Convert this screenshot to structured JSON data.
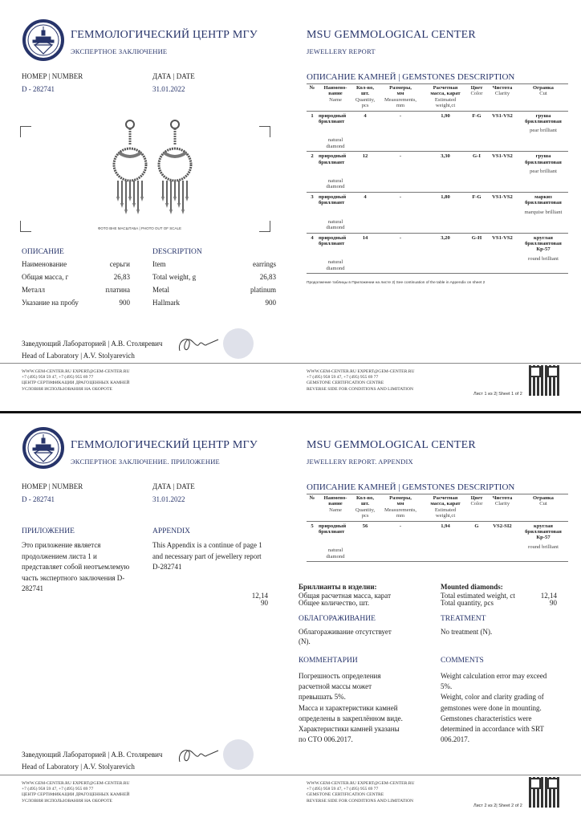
{
  "header_ru": {
    "org": "ГЕММОЛОГИЧЕСКИЙ ЦЕНТР МГУ",
    "doc1": "ЭКСПЕРТНОЕ ЗАКЛЮЧЕНИЕ",
    "doc2": "ЭКСПЕРТНОЕ ЗАКЛЮЧЕНИЕ. ПРИЛОЖЕНИЕ"
  },
  "header_en": {
    "org": "MSU GEMMOLOGICAL CENTER",
    "doc1": "JEWELLERY REPORT",
    "doc2": "JEWELLERY REPORT. APPENDIX"
  },
  "meta": {
    "number_label": "НОМЕР | NUMBER",
    "number": "D - 282741",
    "date_label": "ДАТА | DATE",
    "date": "31.01.2022"
  },
  "photo_caption": "ФОТО ВНЕ МАСШТАБА | PHOTO OUT OF SCALE",
  "description": {
    "title_ru": "ОПИСАНИЕ",
    "title_en": "DESCRIPTION",
    "rows": [
      {
        "ru": "Наименование",
        "ru_val": "серьги",
        "en": "Item",
        "en_val": "earrings"
      },
      {
        "ru": "Общая масса, г",
        "ru_val": "26,83",
        "en": "Total weight, g",
        "en_val": "26,83"
      },
      {
        "ru": "Металл",
        "ru_val": "платина",
        "en": "Metal",
        "en_val": "platinum"
      },
      {
        "ru": "Указание на пробу",
        "ru_val": "900",
        "en": "Hallmark",
        "en_val": "900"
      }
    ]
  },
  "signature": {
    "ru": "Заведующий Лабораторией  | А.В. Столяревич",
    "en": "Head of Laboratory  | A.V. Stolyarevich"
  },
  "footer_ru": [
    "WWW.GEM-CENTER.RU EXPERT@GEM-CENTER.RU",
    "+7 (495) 958 59 47, +7 (495) 955 69 77",
    "ЦЕНТР СЕРТИФИКАЦИИ ДРАГОЦЕННЫХ КАМНЕЙ",
    "УСЛОВИЯ ИСПОЛЬЗОВАНИЯ НА ОБОРОТЕ"
  ],
  "footer_en": [
    "WWW.GEM-CENTER.RU EXPERT@GEM-CENTER.RU",
    "+7 (495) 958 59 47, +7 (495) 955 69 77",
    "GEMSTONE CERTIFICATION CENTRE",
    "REVERSE SIDE FOR CONDITIONS AND LIMITATION"
  ],
  "sheet1_label": "Лист 1 из 2| Sheet 1 of 2",
  "sheet2_label": "Лист 2 из 2| Sheet 2 of 2",
  "gems": {
    "title": "ОПИСАНИЕ КАМНЕЙ | GEMSTONES DESCRIPTION",
    "columns": [
      {
        "ru": "№",
        "en": ""
      },
      {
        "ru": "Наимено-\nвание",
        "en": "Name"
      },
      {
        "ru": "Кол-во,\nшт.",
        "en": "Quantity,\npcs"
      },
      {
        "ru": "Размеры,\nмм",
        "en": "Measurements,\nmm"
      },
      {
        "ru": "Расчетная\nмасса, карат",
        "en": "Estimated\nweight,ct"
      },
      {
        "ru": "Цвет",
        "en": "Color"
      },
      {
        "ru": "Чистота",
        "en": "Clarity"
      },
      {
        "ru": "Огранка",
        "en": "Cut"
      }
    ],
    "sheet1_rows": [
      {
        "no": "1",
        "name_ru": "природный бриллиант",
        "name_en": "natural diamond",
        "qty": "4",
        "meas": "-",
        "weight": "1,90",
        "color": "F-G",
        "clarity": "VS1-VS2",
        "cut_ru": "груша бриллиантовая",
        "cut_en": "pear brilliant"
      },
      {
        "no": "2",
        "name_ru": "природный бриллиант",
        "name_en": "natural diamond",
        "qty": "12",
        "meas": "-",
        "weight": "3,30",
        "color": "G-I",
        "clarity": "VS1-VS2",
        "cut_ru": "груша бриллиантовая",
        "cut_en": "pear brilliant"
      },
      {
        "no": "3",
        "name_ru": "природный бриллиант",
        "name_en": "natural diamond",
        "qty": "4",
        "meas": "-",
        "weight": "1,80",
        "color": "F-G",
        "clarity": "VS1-VS2",
        "cut_ru": "маркиз бриллиантовая",
        "cut_en": "marquise brilliant"
      },
      {
        "no": "4",
        "name_ru": "природный бриллиант",
        "name_en": "natural diamond",
        "qty": "14",
        "meas": "-",
        "weight": "3,20",
        "color": "G-H",
        "clarity": "VS1-VS2",
        "cut_ru": "круглая бриллиантовая Кр-57",
        "cut_en": "round brilliant"
      }
    ],
    "sheet2_rows": [
      {
        "no": "5",
        "name_ru": "природный бриллиант",
        "name_en": "natural diamond",
        "qty": "56",
        "meas": "-",
        "weight": "1,94",
        "color": "G",
        "clarity": "VS2-SI2",
        "cut_ru": "круглая бриллиантовая Кр-57",
        "cut_en": "round brilliant"
      }
    ],
    "continuation_note": "Продолжение таблицы в Приложении на листе 2| See continuation of the table in Appendix on sheet 2"
  },
  "appendix": {
    "title_ru": "ПРИЛОЖЕНИЕ",
    "text_ru": [
      "Это приложение является",
      "продолжением листа 1 и",
      "представляет собой неотъемлемую",
      "часть экспертного заключения D-",
      "282741"
    ],
    "title_en": "APPENDIX",
    "text_en": [
      "This Appendix is a continue of page 1",
      "and necessary part of jewellery report",
      "D-282741"
    ]
  },
  "mounted": {
    "title_ru": "Бриллианты в изделии:",
    "rows_ru": [
      {
        "label": "Общая расчетная масса, карат",
        "value": "12,14"
      },
      {
        "label": "Общее количество, шт.",
        "value": "90"
      }
    ],
    "title_en": "Mounted diamonds:",
    "rows_en": [
      {
        "label": "Total estimated weight, ct",
        "value": "12,14"
      },
      {
        "label": "Total quantity, pcs",
        "value": "90"
      }
    ]
  },
  "treatment": {
    "title_ru": "ОБЛАГОРАЖИВАНИЕ",
    "text_ru": [
      "Облагораживание отсутствует",
      "(N)."
    ],
    "title_en": "TREATMENT",
    "text_en": [
      "No treatment (N)."
    ]
  },
  "comments": {
    "title_ru": "КОММЕНТАРИИ",
    "text_ru": [
      "Погрешность определения",
      "расчетной массы может",
      "превышать 5%.",
      "Масса и характеристики камней",
      "определены в закреплённом виде.",
      "Характеристики камней указаны",
      "по СТО 006.2017."
    ],
    "title_en": "COMMENTS",
    "text_en": [
      "Weight calculation error may exceed",
      "5%.",
      "Weight, color and clarity grading of",
      "gemstones were done in mounting.",
      "Gemstones characteristics were",
      "determined in accordance with SRT",
      "006.2017."
    ]
  },
  "colors": {
    "brand_navy": "#27346a"
  }
}
